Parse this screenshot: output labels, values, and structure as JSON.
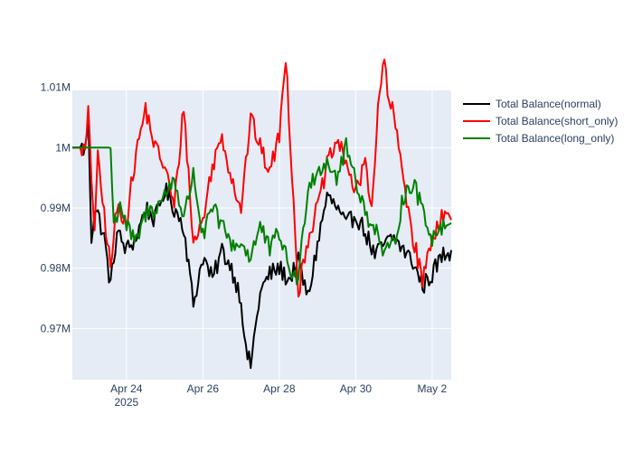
{
  "chart_data": {
    "type": "line",
    "x_axis": {
      "type": "date",
      "range": [
        "2025-04-22 14:00",
        "2025-05-02 12:00"
      ],
      "ticks": [
        {
          "date": "2025-04-24",
          "label": "Apr 24",
          "sublabel": "2025"
        },
        {
          "date": "2025-04-26",
          "label": "Apr 26",
          "sublabel": ""
        },
        {
          "date": "2025-04-28",
          "label": "Apr 28",
          "sublabel": ""
        },
        {
          "date": "2025-04-30",
          "label": "Apr 30",
          "sublabel": ""
        },
        {
          "date": "2025-05-02",
          "label": "May 2",
          "sublabel": ""
        }
      ]
    },
    "y_axis": {
      "range": [
        961500,
        1009500
      ],
      "ticks": [
        {
          "value": 970000,
          "label": "0.97M"
        },
        {
          "value": 980000,
          "label": "0.98M"
        },
        {
          "value": 990000,
          "label": "0.99M"
        },
        {
          "value": 1000000,
          "label": "1M"
        },
        {
          "value": 1010000,
          "label": "1.01M"
        }
      ]
    },
    "grid": true,
    "legend": "top-right",
    "series": [
      {
        "name": "Total Balance(normal)",
        "color": "#000000",
        "points": [
          [
            "2025-04-22 14:00",
            1000000
          ],
          [
            "2025-04-22 20:00",
            1000000
          ],
          [
            "2025-04-22 22:00",
            999500
          ],
          [
            "2025-04-23 00:00",
            1005000
          ],
          [
            "2025-04-23 02:00",
            985000
          ],
          [
            "2025-04-23 04:00",
            990000
          ],
          [
            "2025-04-23 06:00",
            989000
          ],
          [
            "2025-04-23 10:00",
            985000
          ],
          [
            "2025-04-23 14:00",
            977000
          ],
          [
            "2025-04-23 18:00",
            986000
          ],
          [
            "2025-04-24 00:00",
            983000
          ],
          [
            "2025-04-24 06:00",
            985000
          ],
          [
            "2025-04-24 12:00",
            990000
          ],
          [
            "2025-04-24 18:00",
            988000
          ],
          [
            "2025-04-25 00:00",
            993000
          ],
          [
            "2025-04-25 06:00",
            990000
          ],
          [
            "2025-04-25 12:00",
            987000
          ],
          [
            "2025-04-25 18:00",
            974000
          ],
          [
            "2025-04-26 00:00",
            982000
          ],
          [
            "2025-04-26 06:00",
            978000
          ],
          [
            "2025-04-26 12:00",
            983000
          ],
          [
            "2025-04-26 18:00",
            980000
          ],
          [
            "2025-04-27 00:00",
            975000
          ],
          [
            "2025-04-27 03:00",
            966000
          ],
          [
            "2025-04-27 06:00",
            964000
          ],
          [
            "2025-04-27 12:00",
            976000
          ],
          [
            "2025-04-27 18:00",
            979000
          ],
          [
            "2025-04-28 00:00",
            980000
          ],
          [
            "2025-04-28 06:00",
            978000
          ],
          [
            "2025-04-28 12:00",
            981000
          ],
          [
            "2025-04-28 18:00",
            975000
          ],
          [
            "2025-04-29 00:00",
            984000
          ],
          [
            "2025-04-29 06:00",
            992000
          ],
          [
            "2025-04-29 12:00",
            990000
          ],
          [
            "2025-04-29 18:00",
            987000
          ],
          [
            "2025-04-30 00:00",
            989000
          ],
          [
            "2025-04-30 06:00",
            986000
          ],
          [
            "2025-04-30 12:00",
            982000
          ],
          [
            "2025-04-30 18:00",
            984000
          ],
          [
            "2025-05-01 00:00",
            985000
          ],
          [
            "2025-05-01 06:00",
            983000
          ],
          [
            "2025-05-01 12:00",
            981000
          ],
          [
            "2025-05-01 18:00",
            977000
          ],
          [
            "2025-05-02 00:00",
            979000
          ],
          [
            "2025-05-02 06:00",
            982000
          ],
          [
            "2025-05-02 12:00",
            983000
          ]
        ]
      },
      {
        "name": "Total Balance(short_only)",
        "color": "#ff0000",
        "points": [
          [
            "2025-04-22 14:00",
            1000000
          ],
          [
            "2025-04-22 20:00",
            1000000
          ],
          [
            "2025-04-22 22:00",
            999000
          ],
          [
            "2025-04-23 00:00",
            1005500
          ],
          [
            "2025-04-23 02:00",
            995000
          ],
          [
            "2025-04-23 04:00",
            987000
          ],
          [
            "2025-04-23 06:00",
            998000
          ],
          [
            "2025-04-23 10:00",
            989000
          ],
          [
            "2025-04-23 14:00",
            980000
          ],
          [
            "2025-04-23 18:00",
            990000
          ],
          [
            "2025-04-24 00:00",
            988000
          ],
          [
            "2025-04-24 06:00",
            999000
          ],
          [
            "2025-04-24 12:00",
            1006500
          ],
          [
            "2025-04-24 18:00",
            1000000
          ],
          [
            "2025-04-25 00:00",
            997000
          ],
          [
            "2025-04-25 06:00",
            990000
          ],
          [
            "2025-04-25 12:00",
            1007000
          ],
          [
            "2025-04-25 18:00",
            984000
          ],
          [
            "2025-04-26 00:00",
            988000
          ],
          [
            "2025-04-26 06:00",
            997000
          ],
          [
            "2025-04-26 12:00",
            1002000
          ],
          [
            "2025-04-26 18:00",
            995000
          ],
          [
            "2025-04-27 00:00",
            990000
          ],
          [
            "2025-04-27 06:00",
            1005000
          ],
          [
            "2025-04-27 12:00",
            1000000
          ],
          [
            "2025-04-27 18:00",
            996000
          ],
          [
            "2025-04-28 00:00",
            1002000
          ],
          [
            "2025-04-28 04:00",
            1015500
          ],
          [
            "2025-04-28 08:00",
            996000
          ],
          [
            "2025-04-28 12:00",
            976000
          ],
          [
            "2025-04-28 18:00",
            985000
          ],
          [
            "2025-04-29 00:00",
            990000
          ],
          [
            "2025-04-29 06:00",
            997000
          ],
          [
            "2025-04-29 12:00",
            1001000
          ],
          [
            "2025-04-29 18:00",
            998000
          ],
          [
            "2025-04-30 00:00",
            992000
          ],
          [
            "2025-04-30 06:00",
            998000
          ],
          [
            "2025-04-30 10:00",
            990000
          ],
          [
            "2025-04-30 14:00",
            1006000
          ],
          [
            "2025-04-30 18:00",
            1015000
          ],
          [
            "2025-04-30 20:00",
            1009000
          ],
          [
            "2025-05-01 00:00",
            1005000
          ],
          [
            "2025-05-01 06:00",
            995000
          ],
          [
            "2025-05-01 12:00",
            985000
          ],
          [
            "2025-05-01 18:00",
            978000
          ],
          [
            "2025-05-02 00:00",
            985000
          ],
          [
            "2025-05-02 06:00",
            989000
          ],
          [
            "2025-05-02 12:00",
            988000
          ]
        ]
      },
      {
        "name": "Total Balance(long_only)",
        "color": "#008000",
        "points": [
          [
            "2025-04-22 14:00",
            1000000
          ],
          [
            "2025-04-23 14:00",
            1000000
          ],
          [
            "2025-04-23 16:00",
            987000
          ],
          [
            "2025-04-23 20:00",
            991000
          ],
          [
            "2025-04-24 00:00",
            987000
          ],
          [
            "2025-04-24 06:00",
            984000
          ],
          [
            "2025-04-24 12:00",
            989000
          ],
          [
            "2025-04-24 18:00",
            990000
          ],
          [
            "2025-04-25 00:00",
            992000
          ],
          [
            "2025-04-25 06:00",
            995000
          ],
          [
            "2025-04-25 12:00",
            988000
          ],
          [
            "2025-04-25 18:00",
            996000
          ],
          [
            "2025-04-26 00:00",
            985000
          ],
          [
            "2025-04-26 06:00",
            990000
          ],
          [
            "2025-04-26 12:00",
            987000
          ],
          [
            "2025-04-26 18:00",
            984000
          ],
          [
            "2025-04-27 00:00",
            984000
          ],
          [
            "2025-04-27 06:00",
            982000
          ],
          [
            "2025-04-27 12:00",
            987000
          ],
          [
            "2025-04-27 18:00",
            983000
          ],
          [
            "2025-04-28 00:00",
            986000
          ],
          [
            "2025-04-28 06:00",
            980000
          ],
          [
            "2025-04-28 12:00",
            978000
          ],
          [
            "2025-04-28 18:00",
            994000
          ],
          [
            "2025-04-29 00:00",
            996000
          ],
          [
            "2025-04-29 06:00",
            998000
          ],
          [
            "2025-04-29 12:00",
            995000
          ],
          [
            "2025-04-29 18:00",
            1000000
          ],
          [
            "2025-04-30 00:00",
            995000
          ],
          [
            "2025-04-30 06:00",
            989000
          ],
          [
            "2025-04-30 12:00",
            987000
          ],
          [
            "2025-04-30 18:00",
            982000
          ],
          [
            "2025-05-01 00:00",
            984000
          ],
          [
            "2025-05-01 06:00",
            992000
          ],
          [
            "2025-05-01 12:00",
            994000
          ],
          [
            "2025-05-01 18:00",
            990000
          ],
          [
            "2025-05-02 00:00",
            985000
          ],
          [
            "2025-05-02 06:00",
            987000
          ],
          [
            "2025-05-02 12:00",
            987500
          ]
        ]
      }
    ]
  }
}
